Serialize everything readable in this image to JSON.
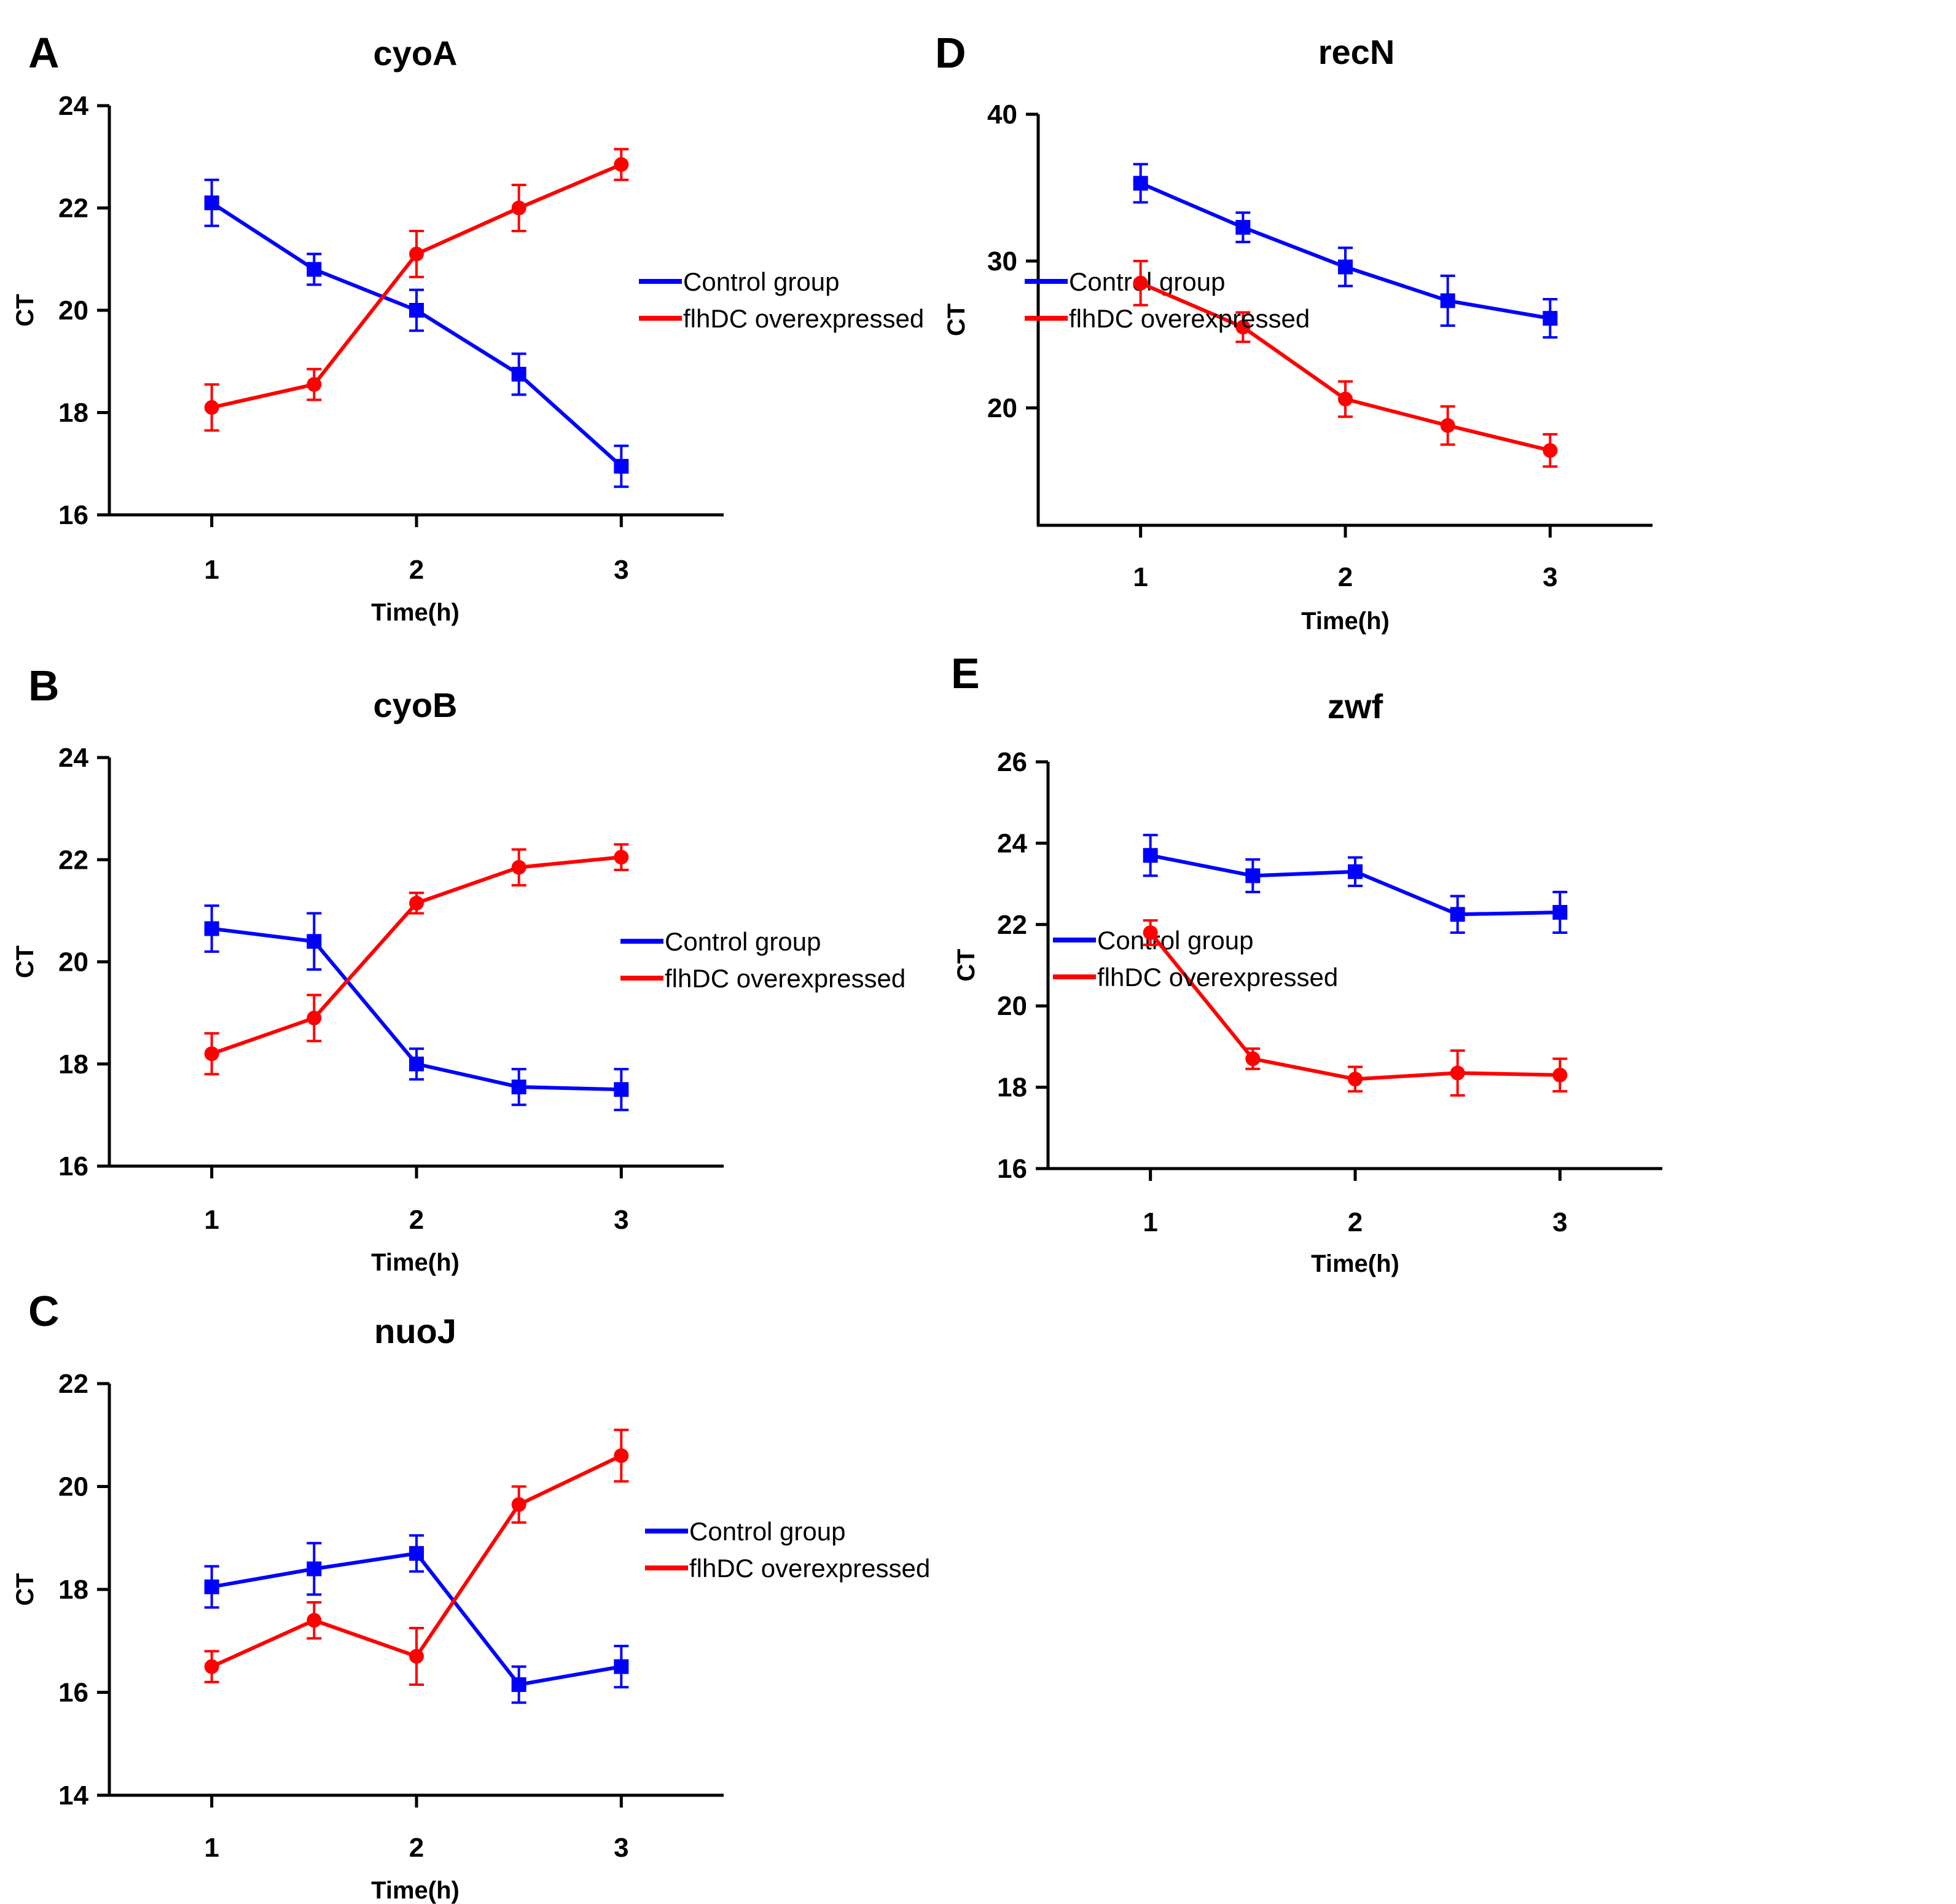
{
  "chart_data": [
    {
      "panel": "A",
      "title": "cyoA",
      "type": "line",
      "xlabel": "Time(h)",
      "ylabel": "CT",
      "xlim": [
        0.5,
        3.5
      ],
      "ylim": [
        16,
        24
      ],
      "x_ticks": [
        1,
        2,
        3
      ],
      "y_ticks": [
        16,
        18,
        20,
        22,
        24
      ],
      "x": [
        1,
        1.5,
        2,
        2.5,
        3
      ],
      "series": [
        {
          "name": "Control group",
          "color": "#0000ff",
          "marker": "square",
          "values": [
            22.1,
            20.8,
            20.0,
            18.75,
            16.95
          ],
          "errors": [
            0.45,
            0.3,
            0.4,
            0.4,
            0.4
          ]
        },
        {
          "name": "flhDC overexpressed",
          "color": "#ff0000",
          "marker": "circle",
          "values": [
            18.1,
            18.55,
            21.1,
            22.0,
            22.85
          ],
          "errors": [
            0.45,
            0.3,
            0.45,
            0.45,
            0.3
          ]
        }
      ]
    },
    {
      "panel": "B",
      "title": "cyoB",
      "type": "line",
      "xlabel": "Time(h)",
      "ylabel": "CT",
      "xlim": [
        0.5,
        3.5
      ],
      "ylim": [
        16,
        24
      ],
      "x_ticks": [
        1,
        2,
        3
      ],
      "y_ticks": [
        16,
        18,
        20,
        22,
        24
      ],
      "x": [
        1,
        1.5,
        2,
        2.5,
        3
      ],
      "series": [
        {
          "name": "Control group",
          "color": "#0000ff",
          "marker": "square",
          "values": [
            20.65,
            20.4,
            18.0,
            17.55,
            17.5
          ],
          "errors": [
            0.45,
            0.55,
            0.3,
            0.35,
            0.4
          ]
        },
        {
          "name": "flhDC overexpressed",
          "color": "#ff0000",
          "marker": "circle",
          "values": [
            18.2,
            18.9,
            21.15,
            21.85,
            22.05
          ],
          "errors": [
            0.4,
            0.45,
            0.2,
            0.35,
            0.25
          ]
        }
      ]
    },
    {
      "panel": "C",
      "title": "nuoJ",
      "type": "line",
      "xlabel": "Time(h)",
      "ylabel": "CT",
      "xlim": [
        0.5,
        3.5
      ],
      "ylim": [
        14,
        22
      ],
      "x_ticks": [
        1,
        2,
        3
      ],
      "y_ticks": [
        14,
        16,
        18,
        20,
        22
      ],
      "x": [
        1,
        1.5,
        2,
        2.5,
        3
      ],
      "series": [
        {
          "name": "Control group",
          "color": "#0000ff",
          "marker": "square",
          "values": [
            18.05,
            18.4,
            18.7,
            16.15,
            16.5
          ],
          "errors": [
            0.4,
            0.5,
            0.35,
            0.35,
            0.4
          ]
        },
        {
          "name": "flhDC overexpressed",
          "color": "#ff0000",
          "marker": "circle",
          "values": [
            16.5,
            17.4,
            16.7,
            19.65,
            20.6
          ],
          "errors": [
            0.3,
            0.35,
            0.55,
            0.35,
            0.5
          ]
        }
      ]
    },
    {
      "panel": "D",
      "title": "recN",
      "type": "line",
      "xlabel": "Time(h)",
      "ylabel": "CT",
      "xlim": [
        0.5,
        3.5
      ],
      "ylim": [
        12,
        40
      ],
      "x_ticks": [
        1,
        2,
        3
      ],
      "y_ticks": [
        20,
        30,
        40
      ],
      "x": [
        1,
        1.5,
        2,
        2.5,
        3
      ],
      "series": [
        {
          "name": "Control group",
          "color": "#0000ff",
          "marker": "square",
          "values": [
            35.3,
            32.3,
            29.6,
            27.3,
            26.1
          ],
          "errors": [
            1.3,
            1.0,
            1.3,
            1.7,
            1.3
          ]
        },
        {
          "name": "flhDC overexpressed",
          "color": "#ff0000",
          "marker": "circle",
          "values": [
            28.5,
            25.5,
            20.6,
            18.8,
            17.1
          ],
          "errors": [
            1.5,
            1.0,
            1.2,
            1.3,
            1.1
          ]
        }
      ]
    },
    {
      "panel": "E",
      "title": "zwf",
      "type": "line",
      "xlabel": "Time(h)",
      "ylabel": "CT",
      "xlim": [
        0.5,
        3.5
      ],
      "ylim": [
        16,
        26
      ],
      "x_ticks": [
        1,
        2,
        3
      ],
      "y_ticks": [
        16,
        18,
        20,
        22,
        24,
        26
      ],
      "x": [
        1,
        1.5,
        2,
        2.5,
        3
      ],
      "series": [
        {
          "name": "Control group",
          "color": "#0000ff",
          "marker": "square",
          "values": [
            23.7,
            23.2,
            23.3,
            22.25,
            22.3
          ],
          "errors": [
            0.5,
            0.4,
            0.35,
            0.45,
            0.5
          ]
        },
        {
          "name": "flhDC overexpressed",
          "color": "#ff0000",
          "marker": "circle",
          "values": [
            21.8,
            18.7,
            18.2,
            18.35,
            18.3
          ],
          "errors": [
            0.3,
            0.25,
            0.3,
            0.55,
            0.4
          ]
        }
      ]
    }
  ]
}
